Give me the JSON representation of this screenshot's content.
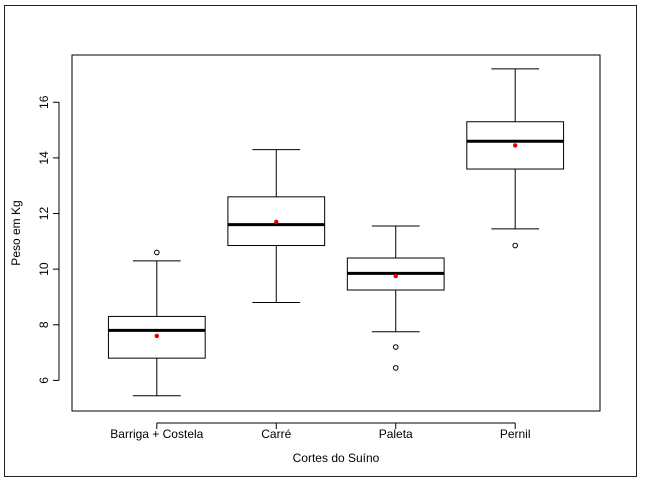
{
  "chart_data": {
    "type": "boxplot",
    "xlabel": "Cortes do Suíno",
    "ylabel": "Peso em Kg",
    "ylim": [
      4.9,
      17.7
    ],
    "yticks": [
      6,
      8,
      10,
      12,
      14,
      16
    ],
    "grid": false,
    "categories": [
      "Barriga + Costela",
      "Carré",
      "Paleta",
      "Pernil"
    ],
    "boxes": [
      {
        "name": "Barriga + Costela",
        "whisker_low": 5.45,
        "q1": 6.8,
        "median": 7.8,
        "q3": 8.3,
        "whisker_high": 10.3,
        "mean": 7.6,
        "outliers": [
          10.6
        ]
      },
      {
        "name": "Carré",
        "whisker_low": 8.8,
        "q1": 10.85,
        "median": 11.6,
        "q3": 12.6,
        "whisker_high": 14.3,
        "mean": 11.7,
        "outliers": []
      },
      {
        "name": "Paleta",
        "whisker_low": 7.75,
        "q1": 9.25,
        "median": 9.85,
        "q3": 10.4,
        "whisker_high": 11.55,
        "mean": 9.75,
        "outliers": [
          7.2,
          6.45
        ]
      },
      {
        "name": "Pernil",
        "whisker_low": 11.45,
        "q1": 13.6,
        "median": 14.6,
        "q3": 15.3,
        "whisker_high": 17.2,
        "mean": 14.45,
        "outliers": [
          10.85
        ]
      }
    ],
    "colors": {
      "box": "#000000",
      "median": "#000000",
      "mean_marker": "#e00000",
      "outlier": "#000000"
    }
  }
}
